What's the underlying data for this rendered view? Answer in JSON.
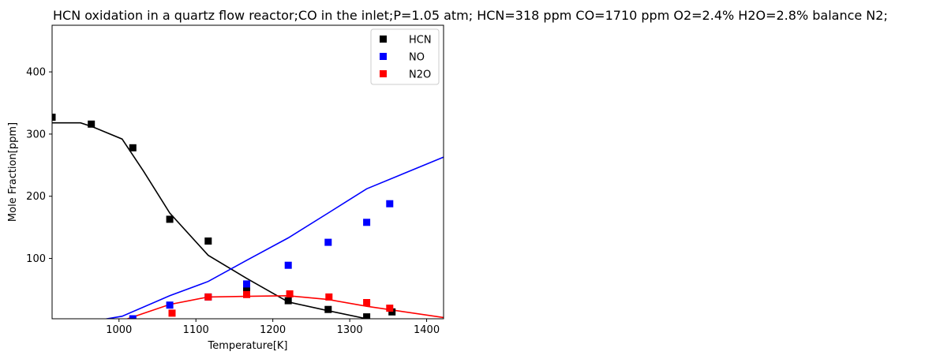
{
  "chart_data": {
    "type": "scatter",
    "title": "HCN oxidation in a quartz flow reactor;CO in the inlet;P=1.05 atm; HCN=318 ppm CO=1710 ppm O2=2.4% H2O=2.8% balance N2;",
    "xlabel": "Temperature[K]",
    "ylabel": "Mole Fraction[ppm]",
    "xlim": [
      913,
      1422
    ],
    "ylim": [
      3,
      475
    ],
    "xticks": [
      1000,
      1100,
      1200,
      1300,
      1400
    ],
    "yticks": [
      100,
      200,
      300,
      400
    ],
    "grid": false,
    "legend_position": "top-right",
    "series": [
      {
        "name": "HCN",
        "color": "#000000",
        "marker": "square",
        "points": [
          [
            913,
            327
          ],
          [
            964,
            316
          ],
          [
            1018,
            278
          ],
          [
            1066,
            163
          ],
          [
            1116,
            128
          ],
          [
            1166,
            52
          ],
          [
            1220,
            32
          ],
          [
            1272,
            18
          ],
          [
            1322,
            6
          ],
          [
            1355,
            14
          ]
        ]
      },
      {
        "name": "NO",
        "color": "#0000ff",
        "marker": "square",
        "points": [
          [
            1018,
            3
          ],
          [
            1066,
            25
          ],
          [
            1116,
            38
          ],
          [
            1166,
            59
          ],
          [
            1220,
            89
          ],
          [
            1272,
            126
          ],
          [
            1322,
            158
          ],
          [
            1352,
            188
          ]
        ]
      },
      {
        "name": "N2O",
        "color": "#ff0000",
        "marker": "square",
        "points": [
          [
            1069,
            12
          ],
          [
            1116,
            38
          ],
          [
            1166,
            42
          ],
          [
            1222,
            43
          ],
          [
            1273,
            38
          ],
          [
            1322,
            29
          ],
          [
            1352,
            20
          ]
        ]
      }
    ],
    "model_lines": [
      {
        "color": "#000000",
        "points": [
          [
            913,
            318
          ],
          [
            950,
            318
          ],
          [
            965,
            312
          ],
          [
            1004,
            292
          ],
          [
            1032,
            240
          ],
          [
            1066,
            173
          ],
          [
            1116,
            105
          ],
          [
            1166,
            68
          ],
          [
            1220,
            30
          ],
          [
            1272,
            16
          ],
          [
            1322,
            3
          ],
          [
            1352,
            0
          ],
          [
            1422,
            0
          ]
        ]
      },
      {
        "color": "#0000ff",
        "points": [
          [
            913,
            0
          ],
          [
            970,
            0
          ],
          [
            1004,
            7
          ],
          [
            1066,
            40
          ],
          [
            1116,
            63
          ],
          [
            1166,
            97
          ],
          [
            1220,
            133
          ],
          [
            1272,
            173
          ],
          [
            1322,
            212
          ],
          [
            1422,
            263
          ]
        ]
      },
      {
        "color": "#ff0000",
        "points": [
          [
            1004,
            0
          ],
          [
            1066,
            26
          ],
          [
            1116,
            38
          ],
          [
            1166,
            39
          ],
          [
            1220,
            40
          ],
          [
            1272,
            34
          ],
          [
            1322,
            23
          ],
          [
            1422,
            5
          ]
        ]
      }
    ]
  }
}
